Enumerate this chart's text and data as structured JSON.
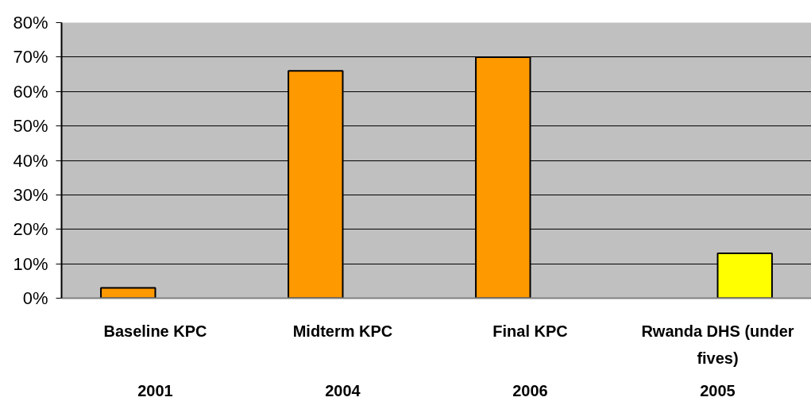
{
  "chart_data": {
    "type": "bar",
    "categories": [
      "Baseline KPC\n2001",
      "Midterm KPC\n2004",
      "Final KPC\n2006",
      "Rwanda DHS (under\nfives)\n2005"
    ],
    "series": [
      {
        "color": "#ff9900",
        "values": [
          3,
          66,
          70,
          null
        ]
      },
      {
        "color": "#ffff00",
        "values": [
          null,
          null,
          null,
          13
        ]
      }
    ],
    "ylim": [
      0,
      80
    ],
    "yticks": [
      {
        "value": 0,
        "label": "0%"
      },
      {
        "value": 10,
        "label": "10%"
      },
      {
        "value": 20,
        "label": "20%"
      },
      {
        "value": 30,
        "label": "30%"
      },
      {
        "value": 40,
        "label": "40%"
      },
      {
        "value": 50,
        "label": "50%"
      },
      {
        "value": 60,
        "label": "60%"
      },
      {
        "value": 70,
        "label": "70%"
      },
      {
        "value": 80,
        "label": "80%"
      }
    ],
    "grid": "y"
  }
}
